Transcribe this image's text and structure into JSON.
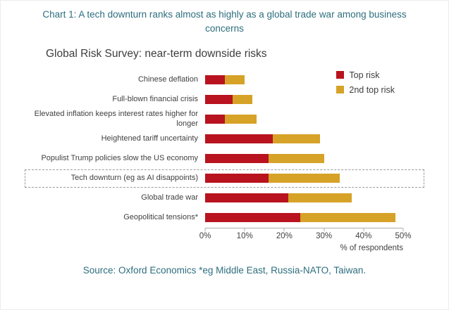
{
  "caption": "Chart 1: A tech downturn ranks almost as highly as a global trade war among business concerns",
  "source": "Source: Oxford Economics *eg Middle East, Russia-NATO, Taiwan.",
  "colors": {
    "accent_text": "#2d6e7e",
    "top_risk": "#b8131f",
    "second_top_risk": "#d6a227"
  },
  "chart_data": {
    "type": "bar",
    "orientation": "horizontal",
    "stacked": true,
    "title": "Global Risk Survey: near-term downside risks",
    "categories": [
      "Chinese deflation",
      "Full-blown financial crisis",
      "Elevated inflation keeps interest rates higher for longer",
      "Heightened tariff uncertainty",
      "Populist Trump policies slow the US economy",
      "Tech downturn (eg as AI disappoints)",
      "Global trade war",
      "Geopolitical tensions*"
    ],
    "series": [
      {
        "name": "Top risk",
        "color": "#b8131f",
        "values": [
          5,
          7,
          5,
          17,
          16,
          16,
          21,
          24
        ]
      },
      {
        "name": "2nd top risk",
        "color": "#d6a227",
        "values": [
          5,
          5,
          8,
          12,
          14,
          18,
          16,
          24
        ]
      }
    ],
    "xlabel": "% of respondents",
    "xlim": [
      0,
      50
    ],
    "xticks": [
      "0%",
      "10%",
      "20%",
      "30%",
      "40%",
      "50%"
    ],
    "legend_position": "top-right",
    "grid": false,
    "highlighted_category": "Tech downturn (eg as AI disappoints)"
  }
}
